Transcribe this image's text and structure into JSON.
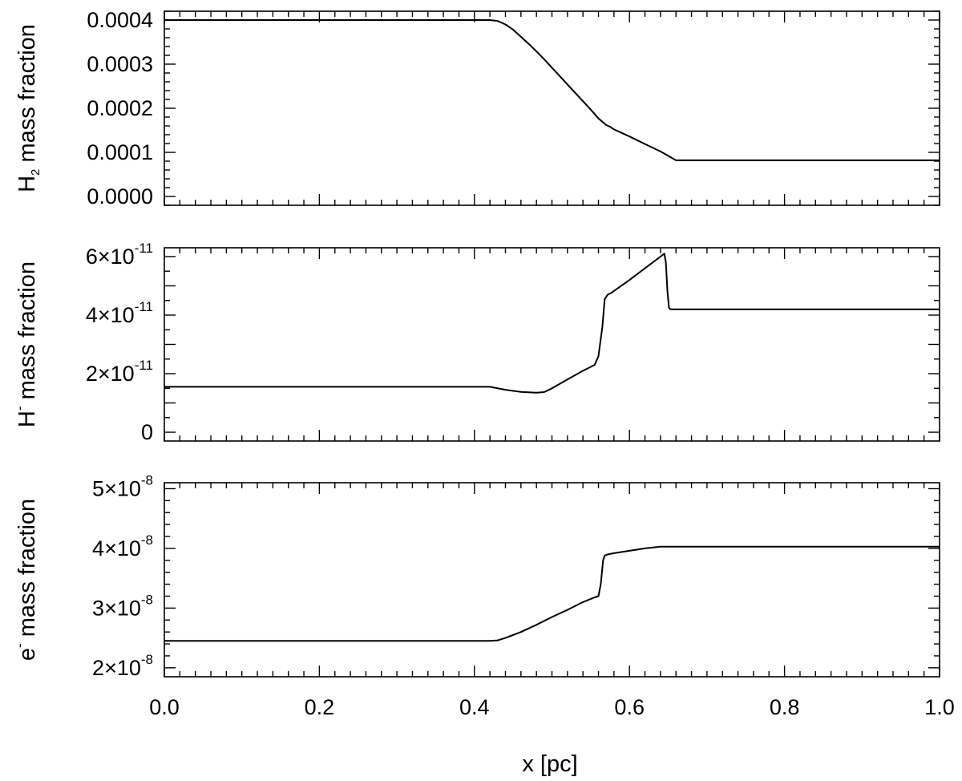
{
  "chart_data": [
    {
      "type": "line",
      "id": "h2",
      "ylabel_parts": [
        "H",
        "2",
        " mass fraction"
      ],
      "ylabel_style": "sub",
      "xlim": [
        0,
        1
      ],
      "ylim": [
        -2e-05,
        0.00042
      ],
      "xticks": [
        0,
        0.2,
        0.4,
        0.6,
        0.8,
        1.0
      ],
      "yticks": [
        0.0,
        0.0001,
        0.0002,
        0.0003,
        0.0004
      ],
      "ytick_labels": [
        "0.0000",
        "0.0001",
        "0.0002",
        "0.0003",
        "0.0004"
      ],
      "series": [
        {
          "x": [
            0.0,
            0.42,
            0.43,
            0.44,
            0.45,
            0.46,
            0.47,
            0.48,
            0.49,
            0.5,
            0.51,
            0.52,
            0.53,
            0.54,
            0.55,
            0.56,
            0.57,
            0.575,
            0.58,
            0.6,
            0.62,
            0.64,
            0.65,
            0.66,
            0.7,
            0.8,
            0.9,
            1.0
          ],
          "y": [
            0.0004,
            0.0004,
            0.000398,
            0.00039,
            0.000378,
            0.000362,
            0.000346,
            0.000329,
            0.000311,
            0.000292,
            0.000273,
            0.000254,
            0.000235,
            0.000216,
            0.000197,
            0.000177,
            0.000162,
            0.000158,
            0.000152,
            0.000136,
            0.000119,
            0.000102,
            9.2e-05,
            8.2e-05,
            8.2e-05,
            8.2e-05,
            8.2e-05,
            8.2e-05
          ]
        }
      ]
    },
    {
      "type": "line",
      "id": "hminus",
      "ylabel_parts": [
        "H",
        "-",
        " mass fraction"
      ],
      "ylabel_style": "sup",
      "xlim": [
        0,
        1
      ],
      "ylim": [
        -3e-12,
        6.3e-11
      ],
      "xticks": [
        0,
        0.2,
        0.4,
        0.6,
        0.8,
        1.0
      ],
      "yticks": [
        0,
        1e-11,
        2e-11,
        3e-11,
        4e-11,
        5e-11,
        6e-11
      ],
      "ytick_labels": [
        "0",
        "",
        "2×10",
        "",
        "4×10",
        "",
        "6×10"
      ],
      "ytick_exponents": [
        "",
        "",
        "-11",
        "",
        "-11",
        "",
        "-11"
      ],
      "series": [
        {
          "x": [
            0.0,
            0.42,
            0.44,
            0.46,
            0.48,
            0.49,
            0.5,
            0.52,
            0.54,
            0.555,
            0.56,
            0.565,
            0.568,
            0.572,
            0.576,
            0.6,
            0.62,
            0.64,
            0.645,
            0.647,
            0.649,
            0.651,
            0.653,
            0.66,
            0.8,
            1.0
          ],
          "y": [
            1.55e-11,
            1.55e-11,
            1.45e-11,
            1.38e-11,
            1.35e-11,
            1.37e-11,
            1.5e-11,
            1.8e-11,
            2.1e-11,
            2.3e-11,
            2.6e-11,
            3.6e-11,
            4.55e-11,
            4.7e-11,
            4.75e-11,
            5.2e-11,
            5.6e-11,
            6e-11,
            6.1e-11,
            5.8e-11,
            4.8e-11,
            4.25e-11,
            4.2e-11,
            4.2e-11,
            4.2e-11,
            4.2e-11
          ]
        }
      ]
    },
    {
      "type": "line",
      "id": "electron",
      "ylabel_parts": [
        "e",
        "-",
        " mass fraction"
      ],
      "ylabel_style": "sup",
      "xlim": [
        0,
        1
      ],
      "xlabel": "x [pc]",
      "ylim": [
        1.85e-08,
        5.1e-08
      ],
      "xticks": [
        0,
        0.2,
        0.4,
        0.6,
        0.8,
        1.0
      ],
      "xtick_labels": [
        "0.0",
        "0.2",
        "0.4",
        "0.6",
        "0.8",
        "1.0"
      ],
      "yticks": [
        2e-08,
        3e-08,
        4e-08,
        5e-08
      ],
      "ytick_labels": [
        "2×10",
        "3×10",
        "4×10",
        "5×10"
      ],
      "ytick_exponents": [
        "-8",
        "-8",
        "-8",
        "-8"
      ],
      "series": [
        {
          "x": [
            0.0,
            0.42,
            0.43,
            0.44,
            0.46,
            0.48,
            0.5,
            0.52,
            0.54,
            0.555,
            0.56,
            0.563,
            0.566,
            0.568,
            0.572,
            0.58,
            0.6,
            0.62,
            0.64,
            0.65,
            0.7,
            0.8,
            0.9,
            1.0
          ],
          "y": [
            2.45e-08,
            2.45e-08,
            2.46e-08,
            2.5e-08,
            2.6e-08,
            2.72e-08,
            2.85e-08,
            2.97e-08,
            3.1e-08,
            3.18e-08,
            3.2e-08,
            3.4e-08,
            3.8e-08,
            3.88e-08,
            3.9e-08,
            3.92e-08,
            3.96e-08,
            4e-08,
            4.03e-08,
            4.03e-08,
            4.03e-08,
            4.03e-08,
            4.03e-08,
            4.03e-08
          ]
        }
      ]
    }
  ]
}
